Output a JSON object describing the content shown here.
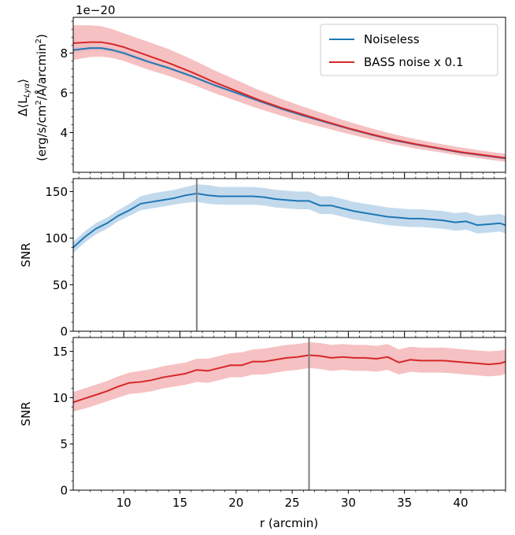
{
  "chart_data": [
    {
      "type": "line",
      "title": "",
      "offset_text": "1e−20",
      "xlabel": "",
      "ylabel_line1": "Δ⟨L",
      "ylabel_sub": "Lyα",
      "ylabel_close": "⟩",
      "ylabel_line2_a": "(erg/s/cm",
      "ylabel_line2_sup1": "2",
      "ylabel_line2_b": "/Å/arcmin",
      "ylabel_line2_sup2": "2",
      "ylabel_line2_c": ")",
      "xlim": [
        5.5,
        44
      ],
      "ylim": [
        2.0,
        9.8
      ],
      "yticks": [
        4,
        6,
        8
      ],
      "legend_position": "top-right",
      "series": [
        {
          "name": "Noiseless",
          "color": "#1f77b4",
          "band_color": "#a6c8e2",
          "x": [
            5.5,
            7,
            8,
            9,
            10,
            11,
            12,
            14,
            16,
            18,
            20,
            22,
            24,
            26,
            28,
            30,
            32,
            34,
            36,
            38,
            40,
            42,
            44
          ],
          "y": [
            8.15,
            8.25,
            8.25,
            8.15,
            8.0,
            7.8,
            7.6,
            7.25,
            6.85,
            6.4,
            6.0,
            5.6,
            5.2,
            4.85,
            4.52,
            4.2,
            3.9,
            3.62,
            3.4,
            3.2,
            3.0,
            2.85,
            2.7
          ],
          "lower": [
            8.0,
            8.1,
            8.12,
            8.03,
            7.88,
            7.68,
            7.5,
            7.15,
            6.76,
            6.32,
            5.93,
            5.53,
            5.14,
            4.8,
            4.47,
            4.15,
            3.86,
            3.58,
            3.37,
            3.17,
            2.97,
            2.82,
            2.67
          ],
          "upper": [
            8.3,
            8.4,
            8.38,
            8.27,
            8.12,
            7.92,
            7.7,
            7.35,
            6.94,
            6.48,
            6.07,
            5.67,
            5.26,
            4.9,
            4.57,
            4.25,
            3.94,
            3.66,
            3.43,
            3.23,
            3.03,
            2.88,
            2.73
          ]
        },
        {
          "name": "BASS noise x 0.1",
          "color": "#d62728",
          "band_color": "#f4b6b7",
          "x": [
            5.5,
            7,
            8,
            9,
            10,
            11,
            12,
            14,
            16,
            18,
            20,
            22,
            24,
            26,
            28,
            30,
            32,
            34,
            36,
            38,
            40,
            42,
            44
          ],
          "y": [
            8.5,
            8.55,
            8.55,
            8.45,
            8.3,
            8.1,
            7.9,
            7.5,
            7.05,
            6.55,
            6.1,
            5.65,
            5.25,
            4.9,
            4.55,
            4.22,
            3.92,
            3.65,
            3.42,
            3.22,
            3.02,
            2.87,
            2.72
          ],
          "lower": [
            7.65,
            7.8,
            7.82,
            7.75,
            7.6,
            7.4,
            7.2,
            6.85,
            6.45,
            6.0,
            5.6,
            5.2,
            4.85,
            4.52,
            4.22,
            3.93,
            3.66,
            3.41,
            3.2,
            3.02,
            2.83,
            2.68,
            2.53
          ],
          "upper": [
            9.4,
            9.4,
            9.35,
            9.2,
            9.0,
            8.8,
            8.6,
            8.2,
            7.7,
            7.15,
            6.65,
            6.15,
            5.7,
            5.3,
            4.92,
            4.55,
            4.22,
            3.92,
            3.67,
            3.45,
            3.25,
            3.08,
            2.93
          ]
        }
      ]
    },
    {
      "type": "line",
      "title": "",
      "xlabel": "",
      "ylabel": "SNR",
      "xlim": [
        5.5,
        44
      ],
      "ylim": [
        0,
        164
      ],
      "yticks": [
        0,
        50,
        100,
        150
      ],
      "vline_x": 16.5,
      "series": [
        {
          "name": "",
          "color": "#1f77b4",
          "band_color": "#b9d4ea",
          "x": [
            5.5,
            6.5,
            7.5,
            8.5,
            9.5,
            10.5,
            11.5,
            12.5,
            13.5,
            14.5,
            15.5,
            16.5,
            17.5,
            18.5,
            19.5,
            20.5,
            21.5,
            22.5,
            23.5,
            24.5,
            25.5,
            26.5,
            27.5,
            28.5,
            29.5,
            30.5,
            31.5,
            32.5,
            33.5,
            34.5,
            35.5,
            36.5,
            37.5,
            38.5,
            39.5,
            40.5,
            41.5,
            42.5,
            43.5,
            44
          ],
          "y": [
            90,
            101,
            110,
            116,
            124,
            130,
            137,
            139,
            141,
            143,
            146,
            148,
            146,
            145,
            145,
            145,
            145,
            144,
            142,
            141,
            140,
            140,
            135,
            135,
            132,
            129,
            127,
            125,
            123,
            122,
            121,
            121,
            120,
            119,
            117,
            118,
            114,
            115,
            116,
            114
          ],
          "lower": [
            84,
            95,
            104,
            110,
            118,
            124,
            130,
            132,
            134,
            136,
            138,
            139,
            137,
            136,
            136,
            136,
            136,
            135,
            133,
            132,
            131,
            131,
            126,
            126,
            123,
            120,
            118,
            116,
            114,
            113,
            112,
            112,
            111,
            110,
            108,
            109,
            105,
            106,
            107,
            105
          ],
          "upper": [
            96,
            107,
            116,
            122,
            130,
            137,
            145,
            148,
            150,
            152,
            155,
            158,
            157,
            155,
            155,
            155,
            155,
            154,
            152,
            151,
            150,
            150,
            145,
            145,
            142,
            139,
            137,
            135,
            133,
            132,
            131,
            131,
            130,
            129,
            127,
            128,
            124,
            125,
            126,
            124
          ]
        }
      ]
    },
    {
      "type": "line",
      "title": "",
      "xlabel": "r (arcmin)",
      "ylabel": "SNR",
      "xlim": [
        5.5,
        44
      ],
      "ylim": [
        0,
        16.5
      ],
      "yticks": [
        0,
        5,
        10,
        15
      ],
      "xticks": [
        10,
        15,
        20,
        25,
        30,
        35,
        40
      ],
      "vline_x": 26.5,
      "series": [
        {
          "name": "",
          "color": "#d62728",
          "band_color": "#f4b6b7",
          "x": [
            5.5,
            6.5,
            7.5,
            8.5,
            9.5,
            10.5,
            11.5,
            12.5,
            13.5,
            14.5,
            15.5,
            16.5,
            17.5,
            18.5,
            19.5,
            20.5,
            21.5,
            22.5,
            23.5,
            24.5,
            25.5,
            26.5,
            27.5,
            28.5,
            29.5,
            30.5,
            31.5,
            32.5,
            33.5,
            34.5,
            35.5,
            36.5,
            37.5,
            38.5,
            39.5,
            40.5,
            41.5,
            42.5,
            43.5,
            44
          ],
          "y": [
            9.5,
            9.9,
            10.3,
            10.7,
            11.2,
            11.6,
            11.7,
            11.9,
            12.2,
            12.4,
            12.6,
            13.0,
            12.9,
            13.2,
            13.5,
            13.5,
            13.9,
            13.9,
            14.1,
            14.3,
            14.4,
            14.6,
            14.5,
            14.3,
            14.4,
            14.3,
            14.3,
            14.2,
            14.4,
            13.8,
            14.1,
            14.0,
            14.0,
            14.0,
            13.9,
            13.8,
            13.7,
            13.6,
            13.7,
            13.9
          ],
          "lower": [
            8.5,
            8.8,
            9.2,
            9.6,
            10.0,
            10.4,
            10.5,
            10.7,
            11.0,
            11.2,
            11.4,
            11.7,
            11.6,
            11.9,
            12.2,
            12.2,
            12.5,
            12.5,
            12.7,
            12.9,
            13.0,
            13.2,
            13.1,
            12.9,
            13.0,
            12.9,
            12.9,
            12.8,
            13.0,
            12.5,
            12.8,
            12.7,
            12.7,
            12.7,
            12.6,
            12.5,
            12.4,
            12.3,
            12.4,
            12.6
          ],
          "upper": [
            10.6,
            11.0,
            11.4,
            11.8,
            12.3,
            12.7,
            12.9,
            13.1,
            13.4,
            13.6,
            13.8,
            14.2,
            14.2,
            14.5,
            14.8,
            14.9,
            15.2,
            15.3,
            15.5,
            15.7,
            15.8,
            16.0,
            15.9,
            15.7,
            15.8,
            15.7,
            15.7,
            15.6,
            15.8,
            15.2,
            15.5,
            15.4,
            15.4,
            15.4,
            15.3,
            15.2,
            15.1,
            15.0,
            15.1,
            15.2
          ]
        }
      ]
    }
  ]
}
